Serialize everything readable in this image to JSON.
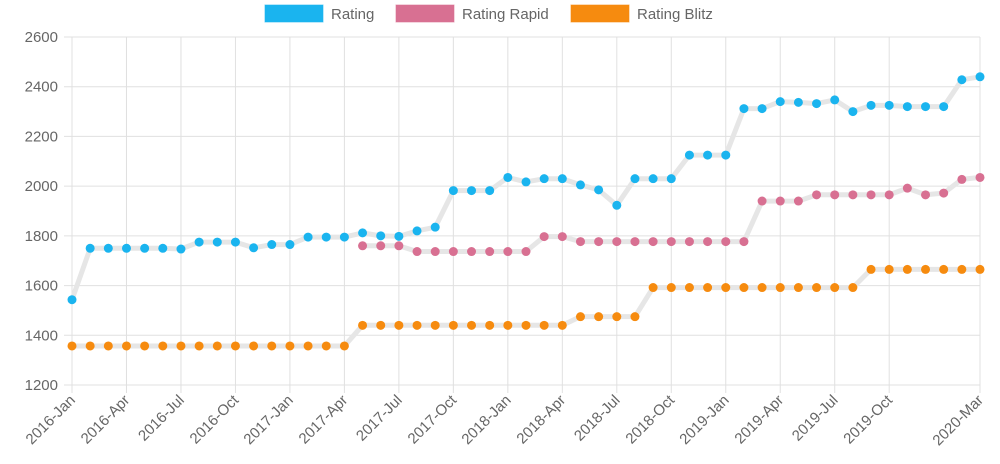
{
  "chart_data": {
    "type": "line",
    "title": "",
    "xlabel": "",
    "ylabel": "",
    "ylim": [
      1200,
      2600
    ],
    "yticks": [
      1200,
      1400,
      1600,
      1800,
      2000,
      2200,
      2400,
      2600
    ],
    "grid": true,
    "legend_position": "top-center",
    "x": [
      "2016-Jan",
      "2016-Feb",
      "2016-Mar",
      "2016-Apr",
      "2016-May",
      "2016-Jun",
      "2016-Jul",
      "2016-Aug",
      "2016-Sep",
      "2016-Oct",
      "2016-Nov",
      "2016-Dec",
      "2017-Jan",
      "2017-Feb",
      "2017-Mar",
      "2017-Apr",
      "2017-May",
      "2017-Jun",
      "2017-Jul",
      "2017-Aug",
      "2017-Sep",
      "2017-Oct",
      "2017-Nov",
      "2017-Dec",
      "2018-Jan",
      "2018-Feb",
      "2018-Mar",
      "2018-Apr",
      "2018-May",
      "2018-Jun",
      "2018-Jul",
      "2018-Aug",
      "2018-Sep",
      "2018-Oct",
      "2018-Nov",
      "2018-Dec",
      "2019-Jan",
      "2019-Feb",
      "2019-Mar",
      "2019-Apr",
      "2019-May",
      "2019-Jun",
      "2019-Jul",
      "2019-Aug",
      "2019-Sep",
      "2019-Oct",
      "2019-Nov",
      "2019-Dec",
      "2020-Jan",
      "2020-Feb",
      "2020-Mar"
    ],
    "xtick_labels": [
      "2016-Jan",
      "2016-Apr",
      "2016-Jul",
      "2016-Oct",
      "2017-Jan",
      "2017-Apr",
      "2017-Jul",
      "2017-Oct",
      "2018-Jan",
      "2018-Apr",
      "2018-Jul",
      "2018-Oct",
      "2019-Jan",
      "2019-Apr",
      "2019-Jul",
      "2019-Oct",
      "2020-Mar"
    ],
    "series": [
      {
        "name": "Rating",
        "color": "#1ab4ef",
        "values": [
          1543,
          1750,
          1750,
          1750,
          1750,
          1750,
          1747,
          1775,
          1775,
          1775,
          1752,
          1765,
          1765,
          1795,
          1795,
          1795,
          1812,
          1800,
          1798,
          1820,
          1835,
          1982,
          1982,
          1982,
          2035,
          2017,
          2030,
          2030,
          2005,
          1985,
          1923,
          2030,
          2030,
          2030,
          2125,
          2125,
          2125,
          2312,
          2312,
          2340,
          2337,
          2332,
          2347,
          2300,
          2325,
          2325,
          2320,
          2320,
          2320,
          2428,
          2440
        ]
      },
      {
        "name": "Rating Rapid",
        "color": "#d87092",
        "values": [
          null,
          null,
          null,
          null,
          null,
          null,
          null,
          null,
          null,
          null,
          null,
          null,
          null,
          null,
          null,
          null,
          1760,
          1760,
          1760,
          1737,
          1737,
          1737,
          1737,
          1737,
          1737,
          1737,
          1797,
          1797,
          1777,
          1777,
          1777,
          1777,
          1777,
          1777,
          1777,
          1777,
          1777,
          1777,
          1940,
          1940,
          1940,
          1965,
          1965,
          1965,
          1965,
          1965,
          1992,
          1965,
          1972,
          2027,
          2035
        ]
      },
      {
        "name": "Rating Blitz",
        "color": "#f68b0f",
        "values": [
          1357,
          1357,
          1357,
          1357,
          1357,
          1357,
          1357,
          1357,
          1357,
          1357,
          1357,
          1357,
          1357,
          1357,
          1357,
          1357,
          1440,
          1440,
          1440,
          1440,
          1440,
          1440,
          1440,
          1440,
          1440,
          1440,
          1440,
          1440,
          1475,
          1475,
          1475,
          1475,
          1592,
          1592,
          1592,
          1592,
          1592,
          1592,
          1592,
          1592,
          1592,
          1592,
          1592,
          1592,
          1665,
          1665,
          1665,
          1665,
          1665,
          1665,
          1665
        ]
      }
    ]
  }
}
